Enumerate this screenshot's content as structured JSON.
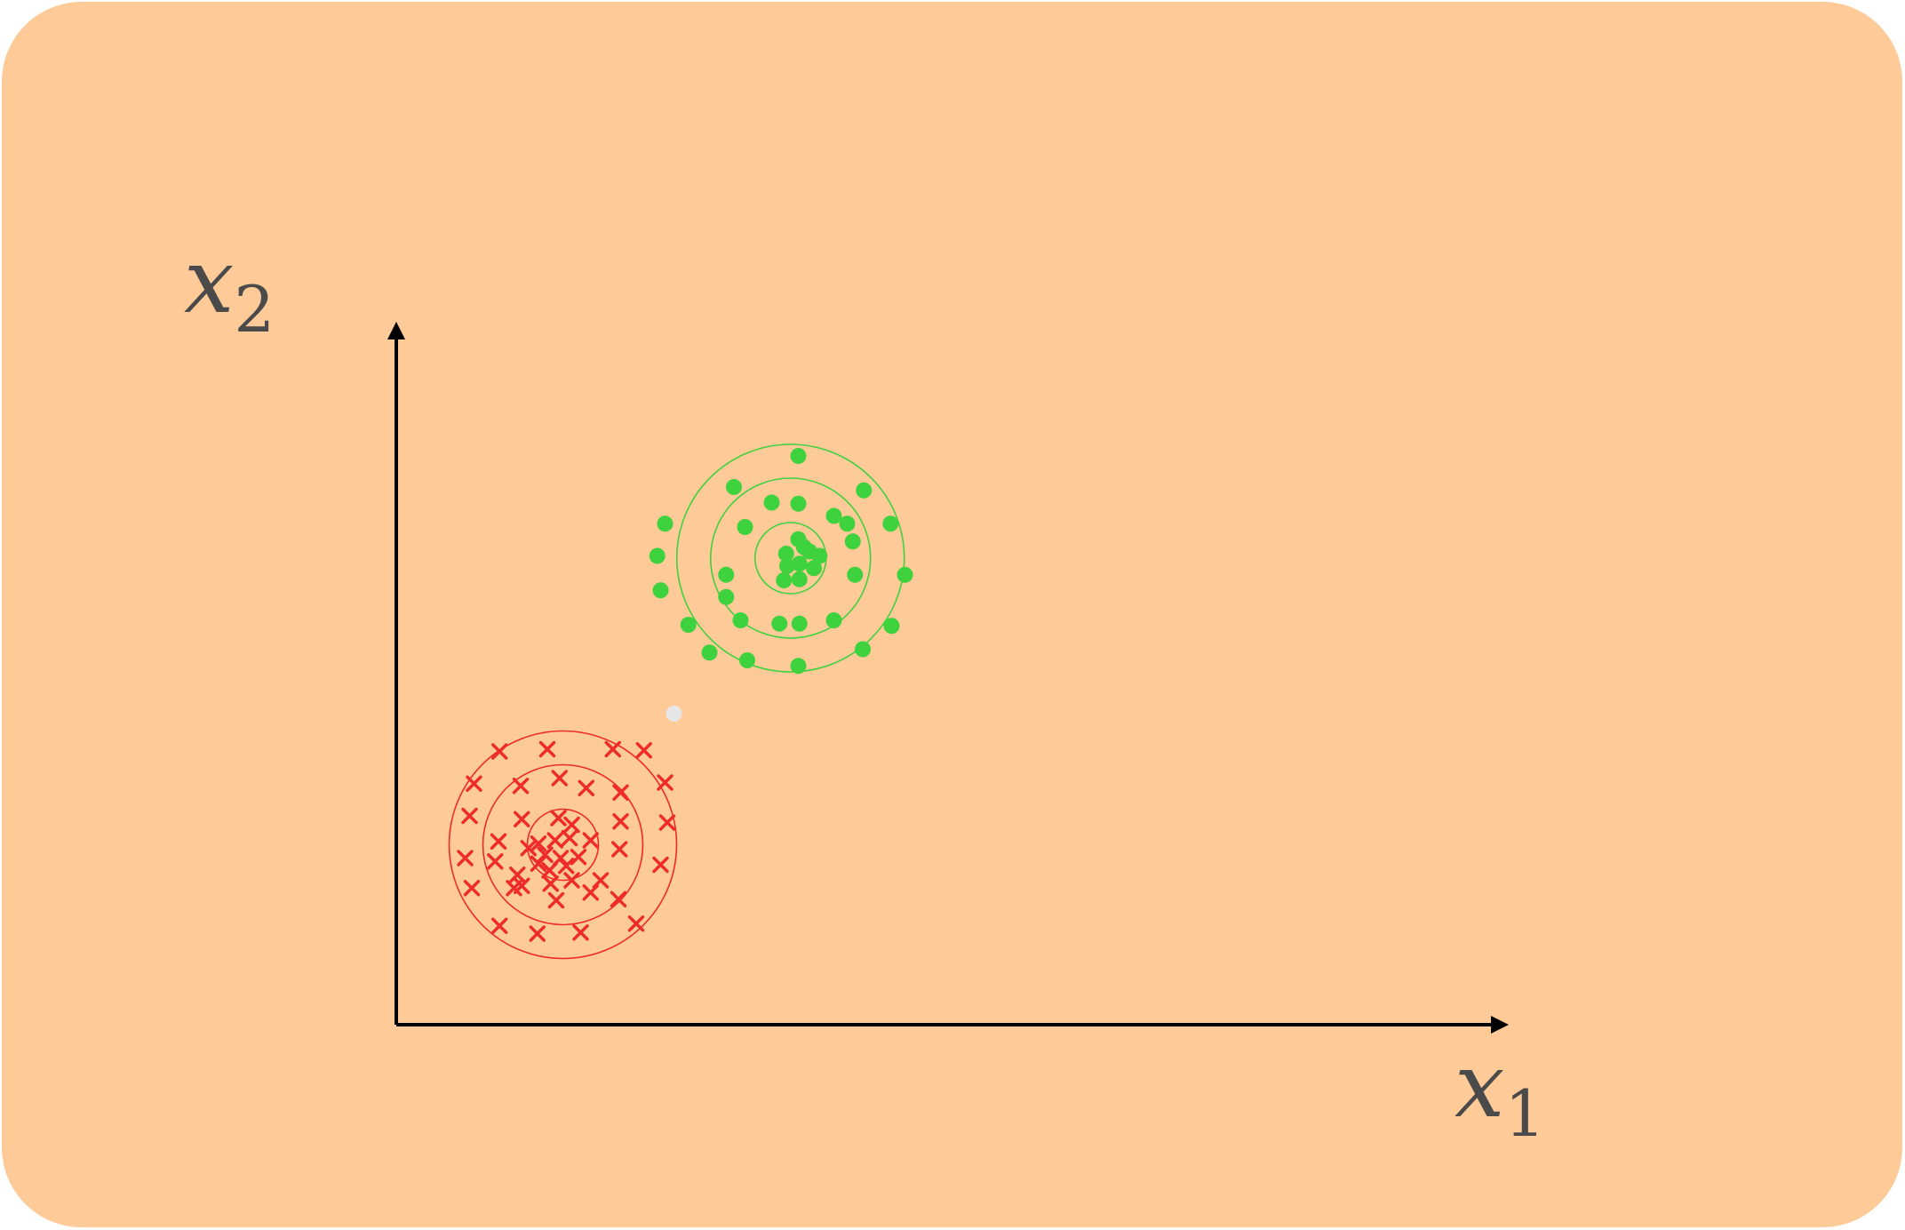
{
  "colors": {
    "background": "#fdca98",
    "axis": "#000000",
    "label": "#4a4a4a",
    "class_a": "#ee2a2a",
    "class_b": "#3ed23e",
    "query_point": "#e6e6e6"
  },
  "axes": {
    "x_label": {
      "var": "x",
      "sub": "1"
    },
    "y_label": {
      "var": "x",
      "sub": "2"
    }
  },
  "chart_data": {
    "type": "scatter",
    "title": "",
    "series": [
      {
        "marker": "cross",
        "color": "#ee2a2a",
        "contours": 3,
        "center": [
          15.0,
          16.2
        ],
        "points": [
          [
            9.3,
            24.6
          ],
          [
            13.6,
            24.8
          ],
          [
            19.5,
            24.8
          ],
          [
            22.3,
            24.7
          ],
          [
            24.2,
            21.8
          ],
          [
            7.0,
            21.7
          ],
          [
            14.7,
            22.2
          ],
          [
            11.2,
            21.5
          ],
          [
            17.1,
            21.3
          ],
          [
            20.2,
            20.9
          ],
          [
            6.6,
            18.8
          ],
          [
            11.3,
            18.5
          ],
          [
            14.6,
            18.6
          ],
          [
            20.2,
            18.3
          ],
          [
            24.4,
            18.2
          ],
          [
            9.2,
            16.5
          ],
          [
            20.1,
            15.8
          ],
          [
            6.2,
            15.0
          ],
          [
            8.9,
            14.7
          ],
          [
            23.8,
            14.4
          ],
          [
            10.9,
            13.5
          ],
          [
            11.3,
            12.5
          ],
          [
            13.9,
            12.7
          ],
          [
            15.8,
            13.0
          ],
          [
            18.4,
            13.0
          ],
          [
            6.8,
            12.3
          ],
          [
            10.6,
            12.3
          ],
          [
            17.5,
            11.9
          ],
          [
            20.0,
            11.3
          ],
          [
            14.4,
            11.2
          ],
          [
            9.3,
            8.9
          ],
          [
            12.7,
            8.2
          ],
          [
            16.6,
            8.3
          ],
          [
            21.6,
            9.1
          ],
          [
            12.8,
            16.3
          ],
          [
            14.3,
            16.6
          ],
          [
            15.6,
            16.8
          ],
          [
            17.5,
            16.6
          ],
          [
            13.4,
            15.3
          ],
          [
            14.8,
            15.0
          ],
          [
            16.4,
            15.1
          ],
          [
            12.8,
            14.5
          ],
          [
            15.3,
            14.3
          ],
          [
            13.8,
            13.9
          ],
          [
            15.8,
            18.0
          ],
          [
            11.9,
            15.9
          ]
        ]
      },
      {
        "marker": "circle",
        "color": "#3ed23e",
        "contours": 3,
        "center": [
          35.5,
          42.0
        ],
        "points": [
          [
            36.2,
            51.2
          ],
          [
            30.4,
            48.4
          ],
          [
            42.1,
            48.1
          ],
          [
            24.2,
            45.1
          ],
          [
            44.5,
            45.1
          ],
          [
            23.5,
            42.2
          ],
          [
            23.8,
            39.1
          ],
          [
            45.8,
            40.5
          ],
          [
            26.3,
            36.0
          ],
          [
            44.6,
            35.9
          ],
          [
            28.2,
            33.5
          ],
          [
            42.0,
            33.8
          ],
          [
            31.6,
            32.8
          ],
          [
            36.2,
            32.3
          ],
          [
            33.8,
            47.0
          ],
          [
            36.2,
            46.9
          ],
          [
            31.4,
            44.8
          ],
          [
            39.4,
            45.8
          ],
          [
            40.6,
            45.1
          ],
          [
            29.7,
            40.5
          ],
          [
            41.1,
            43.5
          ],
          [
            41.3,
            40.5
          ],
          [
            29.7,
            38.5
          ],
          [
            31.0,
            36.4
          ],
          [
            34.5,
            36.1
          ],
          [
            36.3,
            36.1
          ],
          [
            39.4,
            36.4
          ],
          [
            36.2,
            43.7
          ],
          [
            36.7,
            43.0
          ],
          [
            35.1,
            42.4
          ],
          [
            37.2,
            42.6
          ],
          [
            38.1,
            42.2
          ],
          [
            35.2,
            41.3
          ],
          [
            36.3,
            41.5
          ],
          [
            37.6,
            41.1
          ],
          [
            34.9,
            40.0
          ],
          [
            36.3,
            40.1
          ]
        ]
      }
    ],
    "query_point": [
      25.0,
      28.0
    ]
  }
}
